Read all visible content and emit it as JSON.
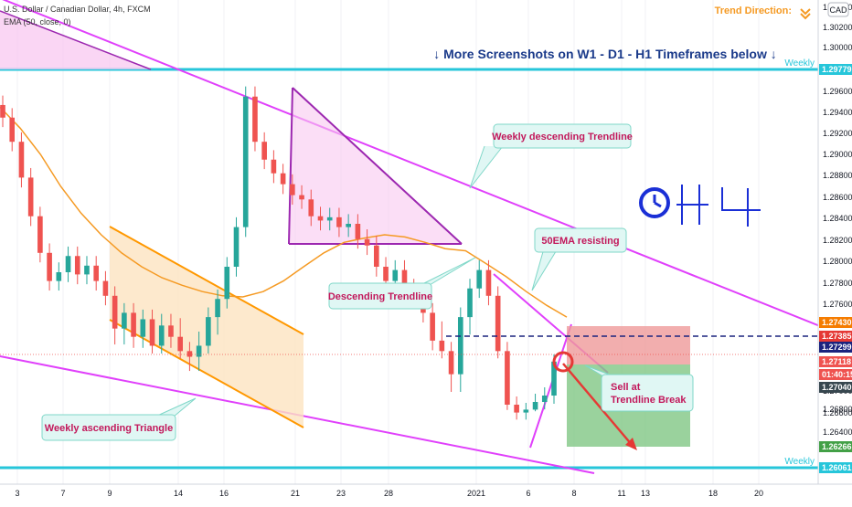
{
  "header": {
    "symbol_line": "U.S. Dollar / Canadian Dollar, 4h, FXCM",
    "indicator_line": "EMA (50, close, 0)",
    "currency_badge": "CAD",
    "trend_direction_label": "Trend Direction:",
    "banner": "↓ More Screenshots on W1 - D1 - H1 Timeframes below ↓",
    "timeframe_label": "H4"
  },
  "annotations": {
    "weekly_descending_trendline": "Weekly descending Trendline",
    "descending_trendline": "Descending Trendline",
    "ema_resisting": "50EMA resisting",
    "weekly_ascending_triangle": "Weekly ascending Triangle",
    "sell_line1": "Sell at",
    "sell_line2": "Trendline Break",
    "weekly_top": "Weekly",
    "weekly_bottom": "Weekly"
  },
  "colors": {
    "magenta": "#e040fb",
    "orange": "#ff9800",
    "cyan": "#26c6da",
    "bull": "#26a69a",
    "bear": "#ef5350",
    "ema": "#f59a23",
    "banner": "#1a3a8a",
    "target_zone": "#81c784",
    "stop_zone": "#ef9a9a",
    "clock_icon": "#1a2fd6"
  },
  "chart_data": {
    "type": "candlestick",
    "title": "U.S. Dollar / Canadian Dollar, 4h, FXCM",
    "x_tick_labels": [
      "3",
      "7",
      "9",
      "14",
      "16",
      "21",
      "23",
      "28",
      "2021",
      "6",
      "8",
      "11",
      "13",
      "18",
      "20"
    ],
    "y_tick_labels": [
      "1.31000",
      "1.30200",
      "1.30000",
      "1.29600",
      "1.29400",
      "1.29200",
      "1.29000",
      "1.28800",
      "1.28600",
      "1.28400",
      "1.28200",
      "1.28000",
      "1.27800",
      "1.27600",
      "1.27000",
      "1.26800",
      "1.26600",
      "1.26400",
      "1.26200"
    ],
    "ylim": [
      1.2595,
      1.3105
    ],
    "price_levels": [
      {
        "label": "1.29779",
        "value": 1.29779,
        "kind": "weekly-resistance"
      },
      {
        "label": "1.27430",
        "value": 1.2743,
        "kind": "stop-top"
      },
      {
        "label": "1.27385",
        "value": 1.27385,
        "kind": "last-high"
      },
      {
        "label": "1.27299",
        "value": 1.27299,
        "kind": "entry"
      },
      {
        "label": "1.27118",
        "value": 1.27118,
        "kind": "last-close"
      },
      {
        "label": "01:40:15",
        "value": 1.2706,
        "kind": "countdown"
      },
      {
        "label": "1.27040",
        "value": 1.2704,
        "kind": "position-split"
      },
      {
        "label": "1.26266",
        "value": 1.26266,
        "kind": "target"
      },
      {
        "label": "1.26061",
        "value": 1.26061,
        "kind": "weekly-support"
      }
    ],
    "ema_50": [
      1.2945,
      1.2925,
      1.29,
      1.287,
      1.2845,
      1.2825,
      1.2808,
      1.2795,
      1.2785,
      1.2778,
      1.2772,
      1.2768,
      1.2767,
      1.2772,
      1.2782,
      1.2795,
      1.2808,
      1.2818,
      1.2822,
      1.2825,
      1.2823,
      1.2818,
      1.2812,
      1.281,
      1.2798,
      1.2786,
      1.2772,
      1.2759,
      1.2748
    ],
    "candles_close": [
      1.2935,
      1.2912,
      1.2878,
      1.2842,
      1.2808,
      1.2782,
      1.279,
      1.2805,
      1.2788,
      1.2796,
      1.2782,
      1.2768,
      1.2741,
      1.2752,
      1.2738,
      1.2746,
      1.2731,
      1.2742,
      1.2738,
      1.2725,
      1.2718,
      1.2731,
      1.2748,
      1.2765,
      1.2795,
      1.2832,
      1.2955,
      1.2912,
      1.2895,
      1.2882,
      1.2872,
      1.2862,
      1.2858,
      1.2842,
      1.2838,
      1.2841,
      1.2832,
      1.2835,
      1.2821,
      1.2815,
      1.2795,
      1.2782,
      1.2792,
      1.2775,
      1.2768,
      1.2752,
      1.2735,
      1.2725,
      1.2708,
      1.2748,
      1.2775,
      1.2792,
      1.2768,
      1.2725,
      1.2685,
      1.2662,
      1.2678,
      1.2688,
      1.2695,
      1.2712
    ]
  }
}
